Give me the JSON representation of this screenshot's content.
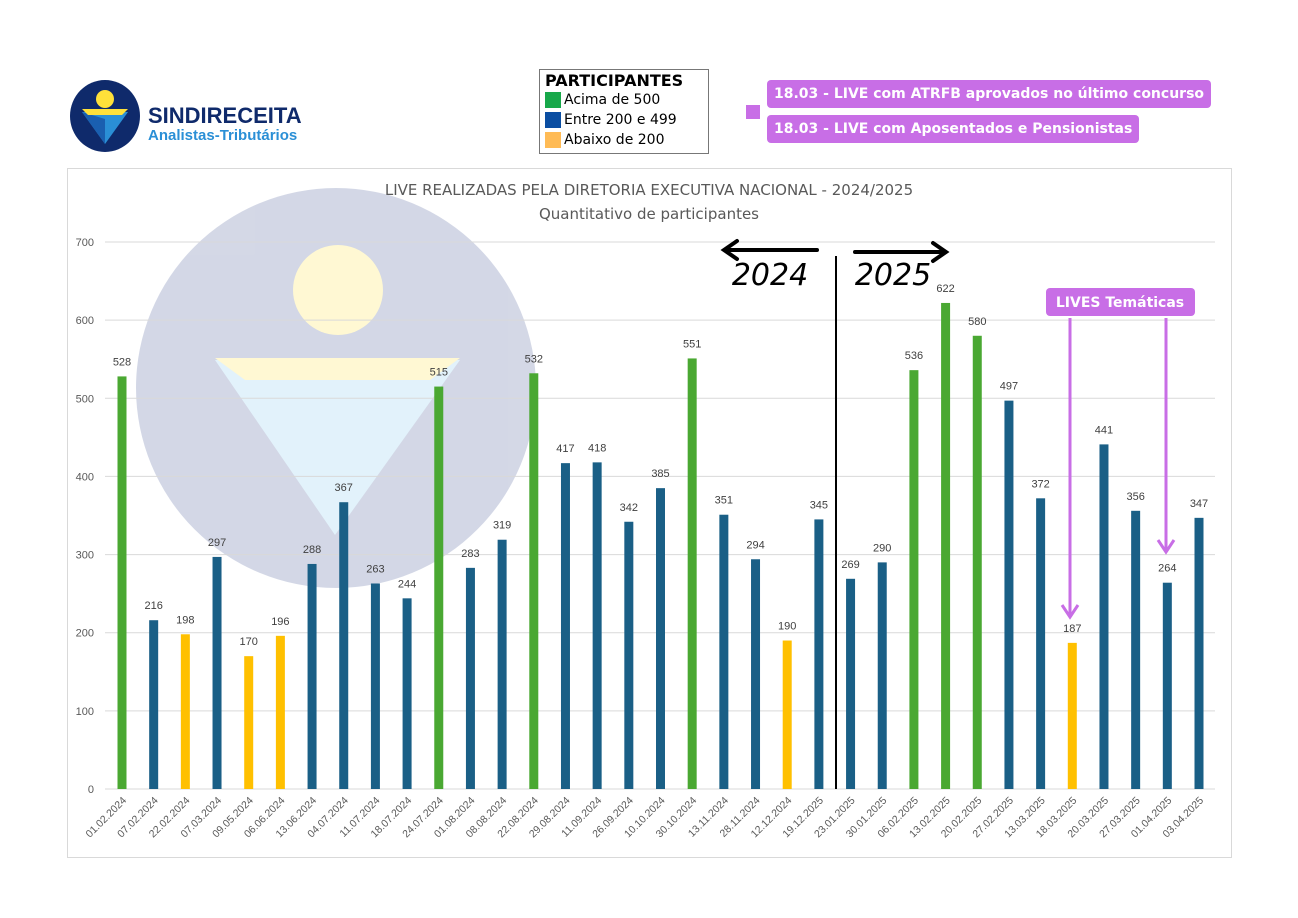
{
  "logo": {
    "name": "SINDIRECEITA",
    "subtitle": "Analistas-Tributários"
  },
  "legend": {
    "title": "PARTICIPANTES",
    "items": [
      {
        "label": "Acima de 500",
        "color": "#18a84a"
      },
      {
        "label": "Entre 200 e 499",
        "color": "#0b4ea2"
      },
      {
        "label": "Abaixo de 200",
        "color": "#ffbb55"
      }
    ]
  },
  "notes": [
    "18.03 - LIVE com ATRFB aprovados no último concurso",
    "18.03 - LIVE com Aposentados e Pensionistas"
  ],
  "annotations": {
    "year_left": "2024",
    "year_right": "2025",
    "thematic": "LIVES Temáticas"
  },
  "colors": {
    "green": "#4aa832",
    "blue": "#1a5f86",
    "yellow": "#ffc000",
    "purple": "#c86ee6"
  },
  "chart_data": {
    "type": "bar",
    "title": "LIVE REALIZADAS PELA DIRETORIA EXECUTIVA NACIONAL - 2024/2025",
    "subtitle": "Quantitativo de participantes",
    "xlabel": "",
    "ylabel": "",
    "ylim": [
      0,
      700
    ],
    "yticks": [
      0,
      100,
      200,
      300,
      400,
      500,
      600,
      700
    ],
    "grid": true,
    "categories": [
      "01.02.2024",
      "07.02.2024",
      "22.02.2024",
      "07.03.2024",
      "09.05.2024",
      "06.06.2024",
      "13.06.2024",
      "04.07.2024",
      "11.07.2024",
      "18.07.2024",
      "24.07.2024",
      "01.08.2024",
      "08.08.2024",
      "22.08.2024",
      "29.08.2024",
      "11.09.2024",
      "26.09.2024",
      "10.10.2024",
      "30.10.2024",
      "13.11.2024",
      "28.11.2024",
      "12.12.2024",
      "19.12.2025",
      "23.01.2025",
      "30.01.2025",
      "06.02.2025",
      "13.02.2025",
      "20.02.2025",
      "27.02.2025",
      "13.03.2025",
      "18.03.2025",
      "20.03.2025",
      "27.03.2025",
      "01.04.2025",
      "03.04.2025"
    ],
    "values": [
      528,
      216,
      198,
      297,
      170,
      196,
      288,
      367,
      263,
      244,
      515,
      283,
      319,
      532,
      417,
      418,
      342,
      385,
      551,
      351,
      294,
      190,
      345,
      269,
      290,
      536,
      622,
      580,
      497,
      372,
      187,
      441,
      356,
      264,
      347
    ]
  }
}
